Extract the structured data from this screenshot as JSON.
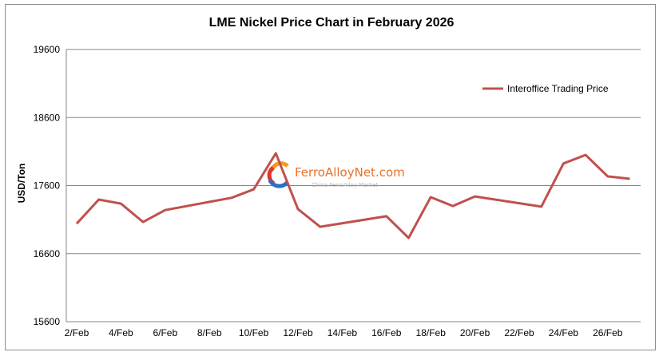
{
  "chart_data": {
    "type": "line",
    "title": "LME Nickel Price Chart in February 2026",
    "xlabel": "",
    "ylabel": "USD/Ton",
    "ylim": [
      15600,
      19600
    ],
    "yticks": [
      15600,
      16600,
      17600,
      18600,
      19600
    ],
    "xtick_labels": [
      "2/Feb",
      "4/Feb",
      "6/Feb",
      "8/Feb",
      "10/Feb",
      "12/Feb",
      "14/Feb",
      "16/Feb",
      "18/Feb",
      "20/Feb",
      "22/Feb",
      "24/Feb",
      "26/Feb"
    ],
    "grid": "horizontal",
    "legend_position": "upper right (inside plot)",
    "x": [
      "2/Feb",
      "3/Feb",
      "4/Feb",
      "5/Feb",
      "6/Feb",
      "9/Feb",
      "10/Feb",
      "11/Feb",
      "12/Feb",
      "13/Feb",
      "16/Feb",
      "17/Feb",
      "18/Feb",
      "19/Feb",
      "20/Feb",
      "23/Feb",
      "24/Feb",
      "25/Feb",
      "26/Feb",
      "27/Feb"
    ],
    "x_day": [
      2,
      3,
      4,
      5,
      6,
      9,
      10,
      11,
      12,
      13,
      16,
      17,
      18,
      19,
      20,
      23,
      24,
      25,
      26,
      27
    ],
    "series": [
      {
        "name": "Interoffice Trading Price",
        "color": "#c0504d",
        "values": [
          17040,
          17395,
          17335,
          17065,
          17240,
          17420,
          17545,
          18075,
          17255,
          16995,
          17150,
          16830,
          17430,
          17300,
          17440,
          17290,
          17925,
          18050,
          17735,
          17700
        ]
      }
    ]
  },
  "watermark": {
    "name": "FerroAlloyNet.com",
    "subtitle": "China FerroAlloy Market"
  },
  "colors": {
    "line": "#c0504d",
    "grid": "#868686",
    "frame": "#8c8c8c",
    "watermark_text": "#e8702a",
    "logo_red": "#e0352b",
    "logo_blue": "#2a6fc9",
    "logo_orange": "#f39a1e"
  }
}
